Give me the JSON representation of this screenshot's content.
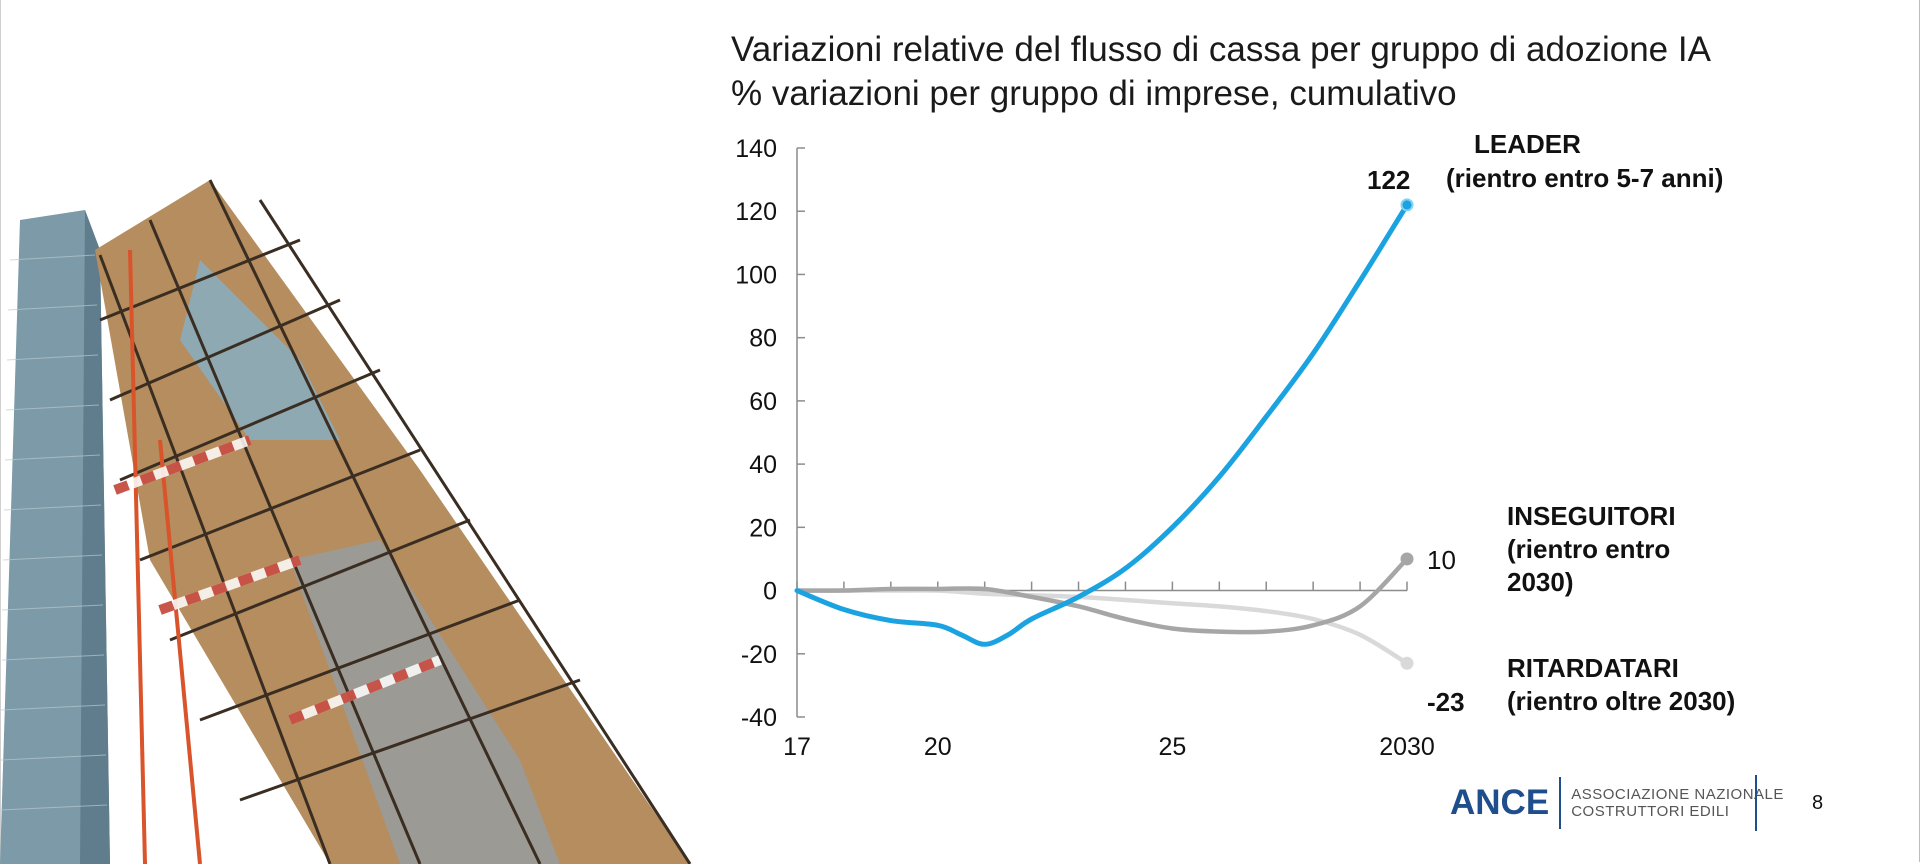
{
  "slide": {
    "title_line1": "Variazioni relative del flusso di cassa per gruppo di adozione IA",
    "title_line2": "% variazioni per gruppo di imprese, cumulativo",
    "page_number": "8"
  },
  "footer": {
    "logo_word": "ANCE",
    "logo_sub1": "ASSOCIAZIONE NAZIONALE",
    "logo_sub2": "COSTRUTTORI EDILI"
  },
  "photo": {
    "description_icon": "construction-scaffolding-photo"
  },
  "chart_data": {
    "type": "line",
    "title": "Variazioni relative del flusso di cassa per gruppo di adozione IA",
    "subtitle": "% variazioni per gruppo di imprese, cumulativo",
    "x_ticks": [
      {
        "value": 2017,
        "label": "17"
      },
      {
        "value": 2020,
        "label": "20"
      },
      {
        "value": 2025,
        "label": "25"
      },
      {
        "value": 2030,
        "label": "2030"
      }
    ],
    "xlim": [
      2017,
      2030
    ],
    "ylim": [
      -40,
      140
    ],
    "y_ticks": [
      -40,
      -20,
      0,
      20,
      40,
      60,
      80,
      100,
      120,
      140
    ],
    "grid": false,
    "series": [
      {
        "name": "LEADER",
        "name_line2": "(rientro entro 5-7 anni)",
        "color": "#1aa3e0",
        "end_label": "122",
        "points": [
          [
            2017,
            0
          ],
          [
            2018,
            -6
          ],
          [
            2019,
            -9.5
          ],
          [
            2020,
            -11
          ],
          [
            2020.5,
            -14
          ],
          [
            2021,
            -17
          ],
          [
            2021.5,
            -14
          ],
          [
            2022,
            -9
          ],
          [
            2023,
            -2
          ],
          [
            2024,
            7
          ],
          [
            2025,
            20
          ],
          [
            2026,
            36
          ],
          [
            2027,
            55
          ],
          [
            2028,
            75
          ],
          [
            2029,
            98
          ],
          [
            2030,
            122
          ]
        ]
      },
      {
        "name": "INSEGUITORI",
        "name_line2": "(rientro entro",
        "name_line3": "2030)",
        "color": "#a6a6a6",
        "end_label": "10",
        "points": [
          [
            2017,
            0
          ],
          [
            2018,
            0
          ],
          [
            2019,
            0.5
          ],
          [
            2020,
            0.5
          ],
          [
            2021,
            0.5
          ],
          [
            2022,
            -2
          ],
          [
            2023,
            -5
          ],
          [
            2024,
            -9
          ],
          [
            2025,
            -12
          ],
          [
            2026,
            -13
          ],
          [
            2027,
            -13
          ],
          [
            2028,
            -11
          ],
          [
            2029,
            -5
          ],
          [
            2030,
            10
          ]
        ]
      },
      {
        "name": "RITARDATARI",
        "name_line2": "(rientro oltre 2030)",
        "color": "#d9d9d9",
        "end_label": "-23",
        "points": [
          [
            2017,
            0
          ],
          [
            2018,
            0
          ],
          [
            2019,
            0
          ],
          [
            2020,
            0
          ],
          [
            2021,
            -1
          ],
          [
            2022,
            -1.5
          ],
          [
            2023,
            -2
          ],
          [
            2024,
            -3
          ],
          [
            2025,
            -4
          ],
          [
            2026,
            -5
          ],
          [
            2027,
            -6.5
          ],
          [
            2028,
            -9
          ],
          [
            2029,
            -14
          ],
          [
            2030,
            -23
          ]
        ]
      }
    ]
  }
}
